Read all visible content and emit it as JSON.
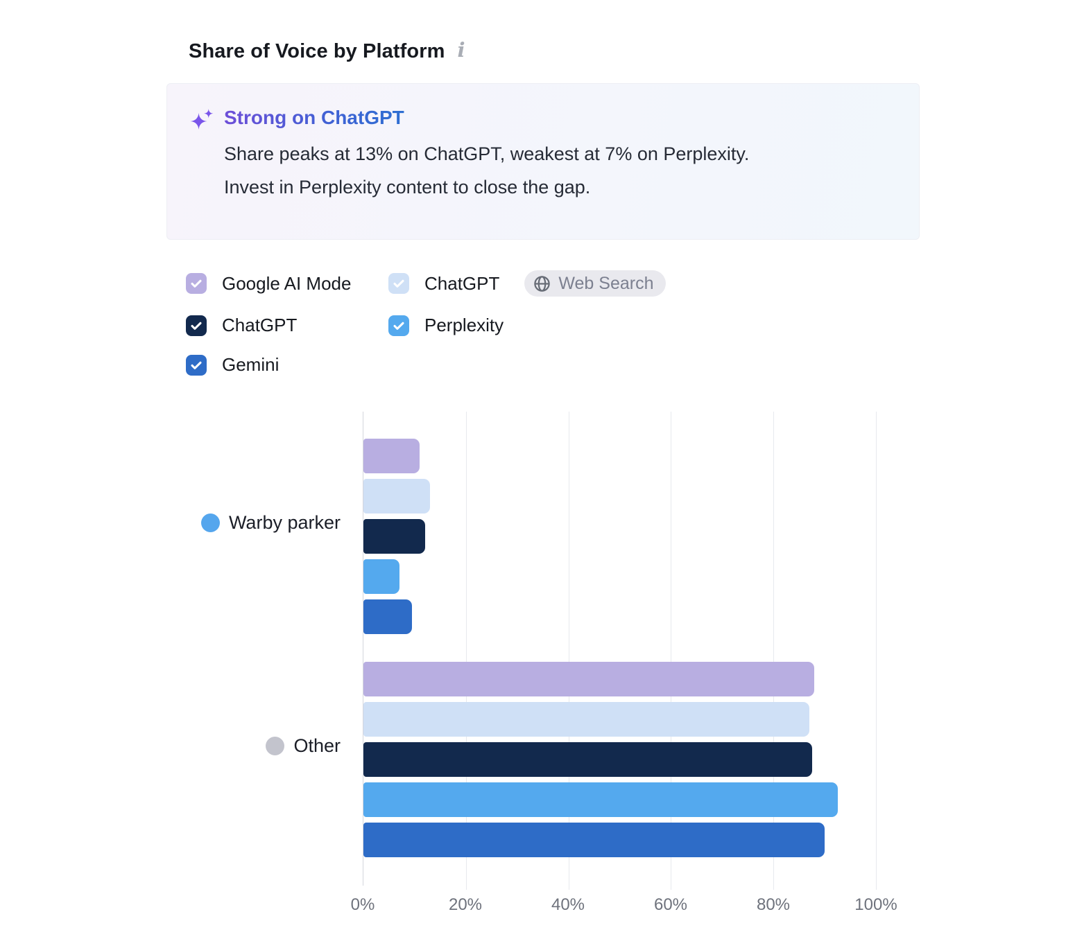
{
  "header": {
    "title": "Share of Voice by Platform"
  },
  "insight": {
    "title": "Strong on ChatGPT",
    "body": [
      "Share peaks at 13% on ChatGPT, weakest at 7% on Perplexity.",
      "Invest in Perplexity content to close the gap."
    ]
  },
  "colors": {
    "heading_gradient_start": "#6d4ed8",
    "heading_gradient_end": "#2e6fd2",
    "sparkle": "#7a55ea",
    "insight_box_bg_left": "#f7f4fb",
    "insight_box_bg_right": "#f2f7fc"
  },
  "legend": [
    {
      "key": "google-ai-mode",
      "label": "Google AI Mode",
      "color": "#b8aee1",
      "checked": true
    },
    {
      "key": "chatgpt-web-search",
      "label": "ChatGPT",
      "badge": "Web Search",
      "color": "#cfe0f6",
      "checked": true
    },
    {
      "key": "chatgpt",
      "label": "ChatGPT",
      "color": "#12294d",
      "checked": true
    },
    {
      "key": "perplexity",
      "label": "Perplexity",
      "color": "#54a9ee",
      "checked": true
    },
    {
      "key": "gemini",
      "label": "Gemini",
      "color": "#2e6cc7",
      "checked": true
    }
  ],
  "chart_data": {
    "type": "bar",
    "orientation": "horizontal",
    "title": "Share of Voice by Platform",
    "categories": [
      {
        "key": "warby-parker",
        "label": "Warby parker",
        "dot_color": "#55a6ed"
      },
      {
        "key": "other",
        "label": "Other",
        "dot_color": "#c3c4cd"
      }
    ],
    "series": [
      {
        "key": "google-ai-mode",
        "name": "Google AI Mode",
        "color": "#b8aee1",
        "values": [
          11,
          88
        ]
      },
      {
        "key": "chatgpt-web-search",
        "name": "ChatGPT (Web Search)",
        "color": "#cfe0f6",
        "values": [
          13,
          87
        ]
      },
      {
        "key": "chatgpt",
        "name": "ChatGPT",
        "color": "#12294d",
        "values": [
          12,
          87.5
        ]
      },
      {
        "key": "perplexity",
        "name": "Perplexity",
        "color": "#54a9ee",
        "values": [
          7,
          92.5
        ]
      },
      {
        "key": "gemini",
        "name": "Gemini",
        "color": "#2e6cc7",
        "values": [
          9.5,
          90
        ]
      }
    ],
    "xticks": [
      "0%",
      "20%",
      "40%",
      "60%",
      "80%",
      "100%"
    ],
    "xlim": [
      0,
      100
    ],
    "grid": true,
    "legend_position": "top",
    "unit": "%"
  }
}
